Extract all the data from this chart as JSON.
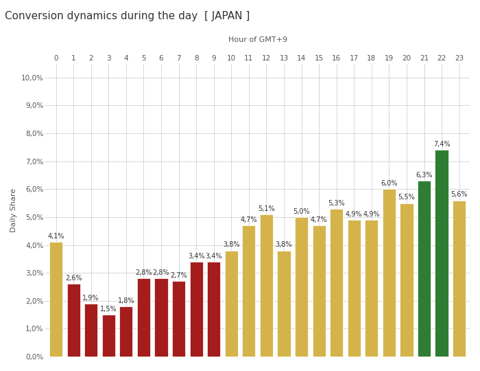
{
  "title": "Conversion dynamics during the day  [ JAPAN ]",
  "xlabel": "Hour of GMT+9",
  "ylabel": "Daily Share",
  "hours": [
    0,
    1,
    2,
    3,
    4,
    5,
    6,
    7,
    8,
    9,
    10,
    11,
    12,
    13,
    14,
    15,
    16,
    17,
    18,
    19,
    20,
    21,
    22,
    23
  ],
  "values": [
    4.1,
    2.6,
    1.9,
    1.5,
    1.8,
    2.8,
    2.8,
    2.7,
    3.4,
    3.4,
    3.8,
    4.7,
    5.1,
    3.8,
    5.0,
    4.7,
    5.3,
    4.9,
    4.9,
    6.0,
    5.5,
    6.3,
    7.4,
    5.6
  ],
  "colors": [
    "#D4B44A",
    "#A51C1C",
    "#A51C1C",
    "#A51C1C",
    "#A51C1C",
    "#A51C1C",
    "#A51C1C",
    "#A51C1C",
    "#A51C1C",
    "#A51C1C",
    "#D4B44A",
    "#D4B44A",
    "#D4B44A",
    "#D4B44A",
    "#D4B44A",
    "#D4B44A",
    "#D4B44A",
    "#D4B44A",
    "#D4B44A",
    "#D4B44A",
    "#D4B44A",
    "#2E7D32",
    "#2E7D32",
    "#D4B44A"
  ],
  "ylim": [
    0,
    10.5
  ],
  "yticks": [
    0.0,
    1.0,
    2.0,
    3.0,
    4.0,
    5.0,
    6.0,
    7.0,
    8.0,
    9.0,
    10.0
  ],
  "background_color": "#FFFFFF",
  "grid_color": "#D0D0D0",
  "title_fontsize": 11,
  "xlabel_fontsize": 8,
  "ylabel_fontsize": 8,
  "tick_fontsize": 7.5,
  "bar_label_fontsize": 7
}
